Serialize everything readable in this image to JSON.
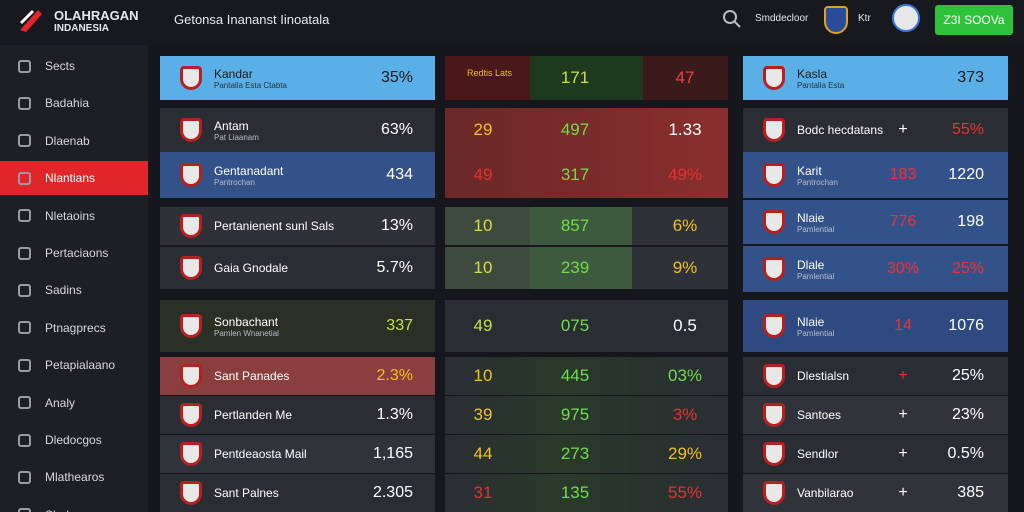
{
  "header": {
    "logo_line1": "OLAHRAGAN",
    "logo_line2": "INDANESIA",
    "title": "Getonsa Inananst Iinoatala",
    "search_label": "Smddecloor",
    "user_label": "Ktr",
    "button": "Z3I SOOVa"
  },
  "sidebar": {
    "items": [
      "Sects",
      "Badahia",
      "Dlaenab",
      "Nlantians",
      "Nletaoins",
      "Pertaciaons",
      "Sadins",
      "Ptnagprecs",
      "Petapialaano",
      "Analy",
      "Dledocgos",
      "Mlathearos",
      "Slode"
    ]
  },
  "left_table": {
    "rows": [
      {
        "name": "Kandar",
        "sub": "Pantalla Esta Ctabta",
        "value": "35%"
      },
      {
        "name": "Antam",
        "sub": "Pat Liaanam",
        "value": "63%"
      },
      {
        "name": "Gentanadant",
        "sub": "Pantrochan",
        "value": "434"
      },
      {
        "name": "Pertanienent sunl Sals",
        "value": "13%"
      },
      {
        "name": "Gaia Gnodale",
        "value": "5.7%"
      },
      {
        "name": "Sonbachant",
        "sub": "Pamlen Wnanetial",
        "value": "337"
      },
      {
        "name": "Sant Panades",
        "value": "2.3%"
      },
      {
        "name": "Pertlanden Me",
        "value": "1.3%"
      },
      {
        "name": "Pentdeaosta Mail",
        "value": "1,165"
      },
      {
        "name": "Sant Palnes",
        "value": "2.305"
      }
    ]
  },
  "middle_table": {
    "header": {
      "label": "Redtis Lats",
      "b": "171",
      "c": "47"
    },
    "rows": [
      {
        "a": "29",
        "b": "497",
        "c": "1.33"
      },
      {
        "a": "49",
        "b": "317",
        "c": "49%"
      },
      {
        "a": "10",
        "b": "857",
        "c": "6%"
      },
      {
        "a": "10",
        "b": "239",
        "c": "9%"
      },
      {
        "a": "49",
        "b": "075",
        "c": "0.5"
      },
      {
        "a": "10",
        "b": "445",
        "c": "03%"
      },
      {
        "a": "39",
        "b": "975",
        "c": "3%"
      },
      {
        "a": "44",
        "b": "273",
        "c": "29%"
      },
      {
        "a": "31",
        "b": "135",
        "c": "55%"
      }
    ]
  },
  "right_table": {
    "rows": [
      {
        "name": "Kasla",
        "sub": "Pantalla Esta",
        "v2": "373"
      },
      {
        "name": "Bodc hecdatans",
        "v1": "+",
        "v2": "55%"
      },
      {
        "name": "Karit",
        "sub": "Pantrochan",
        "v1": "183",
        "v2": "1220"
      },
      {
        "name": "Nlaie",
        "sub": "Pamlential",
        "v1": "776",
        "v2": "198"
      },
      {
        "name": "Dlale",
        "sub": "Pamlential",
        "v1": "30%",
        "v2": "25%"
      },
      {
        "name": "Nlaie",
        "sub": "Pamlential",
        "v1": "14",
        "v2": "1076"
      },
      {
        "name": "Dlestialsn",
        "v1": "+",
        "v2": "25%"
      },
      {
        "name": "Santoes",
        "v1": "+",
        "v2": "23%"
      },
      {
        "name": "Sendlor",
        "v1": "+",
        "v2": "0.5%"
      },
      {
        "name": "Vanbilarao",
        "v1": "+",
        "v2": "385"
      }
    ]
  }
}
